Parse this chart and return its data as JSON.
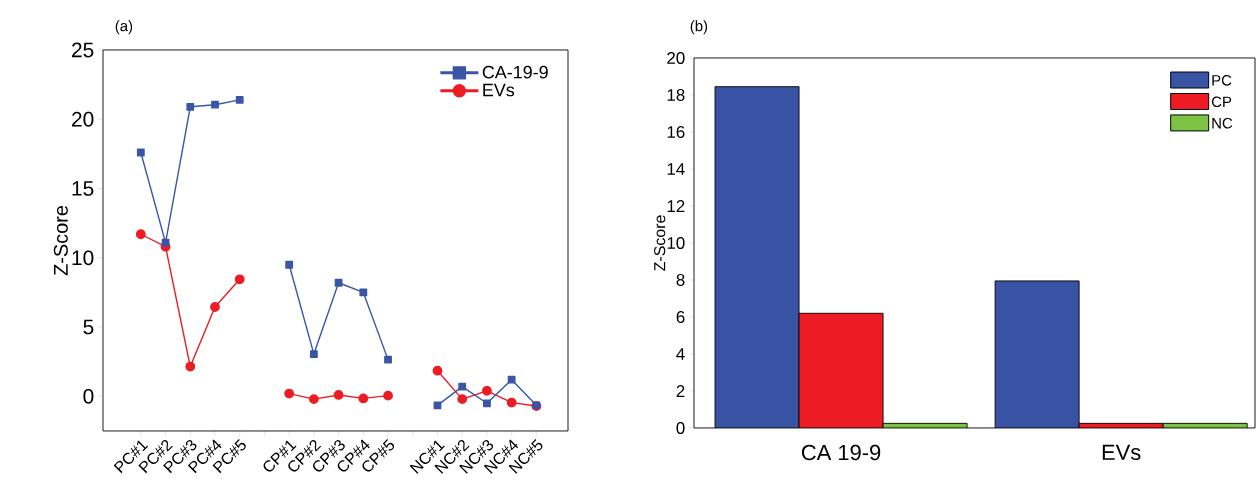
{
  "chart_data": [
    {
      "type": "line",
      "title": "(a)",
      "ylabel": "Z-Score",
      "categories": [
        "PC#1",
        "PC#2",
        "PC#3",
        "PC#4",
        "PC#5",
        null,
        "CP#1",
        "CP#2",
        "CP#3",
        "CP#4",
        "CP#5",
        null,
        "NC#1",
        "NC#2",
        "NC#3",
        "NC#4",
        "NC#5"
      ],
      "series": [
        {
          "name": "CA-19-9",
          "color": "#3a55a5",
          "marker": "square",
          "values": [
            17.6,
            11.1,
            20.9,
            21.05,
            21.4,
            null,
            9.5,
            3.05,
            8.2,
            7.5,
            2.65,
            null,
            -0.65,
            0.7,
            -0.5,
            1.2,
            -0.65
          ]
        },
        {
          "name": "EVs",
          "color": "#ec1c24",
          "marker": "circle",
          "values": [
            11.7,
            10.8,
            2.15,
            6.45,
            8.45,
            null,
            0.2,
            -0.2,
            0.1,
            -0.15,
            0.05,
            null,
            1.85,
            -0.2,
            0.4,
            -0.45,
            -0.7
          ]
        }
      ],
      "ylim": [
        -2.5,
        25
      ],
      "yticks": [
        0,
        5,
        10,
        15,
        20,
        25
      ],
      "legend": "top right",
      "line_style": "solid"
    },
    {
      "type": "bar",
      "title": "(b)",
      "ylabel": "Z-Score",
      "categories": [
        "CA 19-9",
        "EVs"
      ],
      "series": [
        {
          "name": "PC",
          "color": "#3953a4",
          "values": [
            18.45,
            7.95
          ]
        },
        {
          "name": "CP",
          "color": "#ed1c24",
          "values": [
            6.2,
            0.25
          ]
        },
        {
          "name": "NC",
          "color": "#7dc242",
          "values": [
            0.25,
            0.25
          ]
        }
      ],
      "ylim": [
        0,
        20
      ],
      "yticks": [
        0,
        2,
        4,
        6,
        8,
        10,
        12,
        14,
        16,
        18,
        20
      ],
      "legend": "top right"
    }
  ]
}
